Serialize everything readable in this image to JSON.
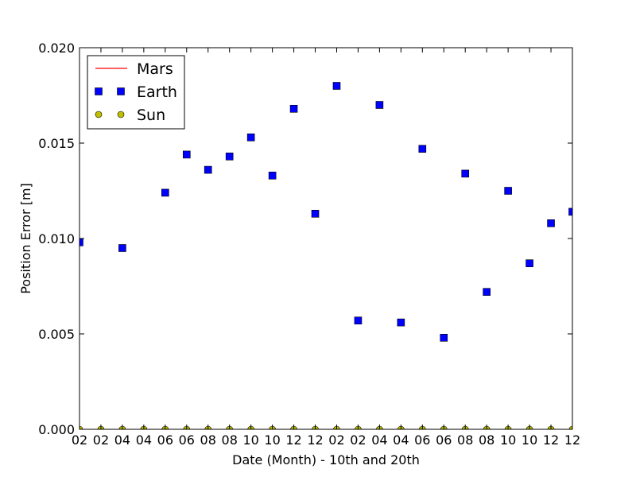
{
  "chart_data": {
    "type": "scatter",
    "xlabel": "Date (Month) - 10th and 20th",
    "ylabel": "Position Error [m]",
    "x": [
      "02",
      "02",
      "04",
      "04",
      "06",
      "06",
      "08",
      "08",
      "10",
      "10",
      "12",
      "12",
      "02",
      "02",
      "04",
      "04",
      "06",
      "06",
      "08",
      "08",
      "10",
      "10",
      "12",
      "12"
    ],
    "ylim": [
      0.0,
      0.02
    ],
    "y_ticks": [
      "0.000",
      "0.005",
      "0.010",
      "0.015",
      "0.020"
    ],
    "y_tick_values": [
      0.0,
      0.005,
      0.01,
      0.015,
      0.02
    ],
    "grid": false,
    "legend": "top-left",
    "series": [
      {
        "name": "Mars",
        "style": "line",
        "color": "#ff0000",
        "values": []
      },
      {
        "name": "Earth",
        "style": "square",
        "color": "#0000ff",
        "values": [
          0.0098,
          null,
          0.0095,
          null,
          0.0124,
          0.0144,
          0.0136,
          0.0143,
          0.0153,
          0.0133,
          0.0168,
          0.0113,
          0.018,
          0.0057,
          0.017,
          0.0056,
          0.0147,
          0.0048,
          0.0134,
          0.0072,
          0.0125,
          0.0087,
          0.0108,
          0.0114
        ]
      },
      {
        "name": "Sun",
        "style": "circle",
        "color": "#bfbf00",
        "values": [
          0,
          0,
          0,
          0,
          0,
          0,
          0,
          0,
          0,
          0,
          0,
          0,
          0,
          0,
          0,
          0,
          0,
          0,
          0,
          0,
          0,
          0,
          0,
          0
        ]
      }
    ]
  }
}
